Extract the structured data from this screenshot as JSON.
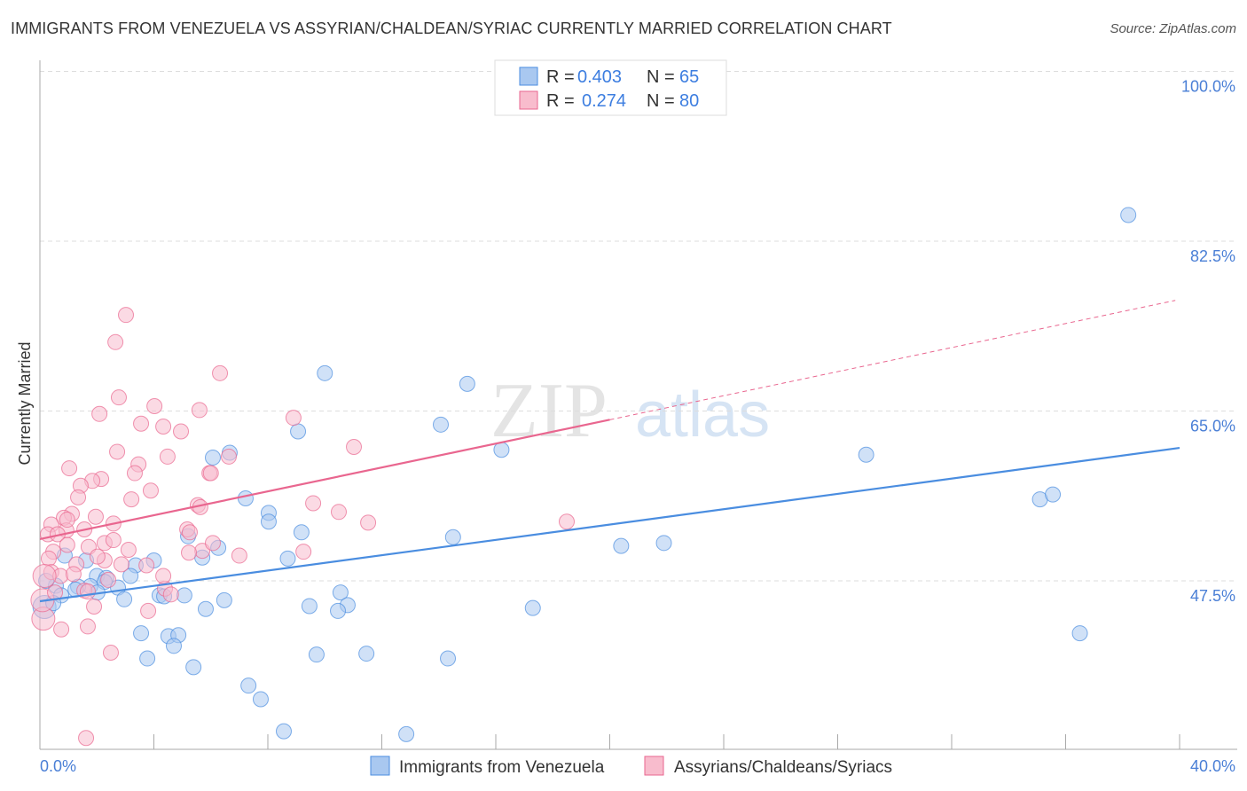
{
  "title": "IMMIGRANTS FROM VENEZUELA VS ASSYRIAN/CHALDEAN/SYRIAC CURRENTLY MARRIED CORRELATION CHART",
  "source": "Source: ZipAtlas.com",
  "watermark": "ZIPatlas",
  "legend": {
    "r_label": "R =",
    "n_label": "N =",
    "rows": [
      {
        "r": "0.403",
        "n": "65"
      },
      {
        "r": "0.274",
        "n": "80"
      }
    ]
  },
  "chart_data": {
    "type": "scatter",
    "title": "IMMIGRANTS FROM VENEZUELA VS ASSYRIAN/CHALDEAN/SYRIAC CURRENTLY MARRIED CORRELATION CHART",
    "xlabel": "",
    "ylabel": "Currently Married",
    "xlim": [
      0,
      40
    ],
    "ylim": [
      30,
      100
    ],
    "x_tick_labels": [
      "0.0%",
      "40.0%"
    ],
    "y_ticks": [
      47.5,
      65.0,
      82.5,
      100.0
    ],
    "y_tick_labels": [
      "47.5%",
      "65.0%",
      "82.5%",
      "100.0%"
    ],
    "grid": true,
    "legend_position": "top-center",
    "series": [
      {
        "name": "Immigrants from Venezuela",
        "color": "#4a8de0",
        "fill": "#a9c8f0",
        "trend": {
          "x": [
            0,
            40
          ],
          "y": [
            45.4,
            61.2
          ]
        },
        "points": [
          [
            38.2,
            85.2
          ],
          [
            10.0,
            68.9
          ],
          [
            15.0,
            67.8
          ],
          [
            9.06,
            62.9
          ],
          [
            14.07,
            63.6
          ],
          [
            6.07,
            60.2
          ],
          [
            6.66,
            60.7
          ],
          [
            16.2,
            61.0
          ],
          [
            29.0,
            60.5
          ],
          [
            35.1,
            55.9
          ],
          [
            35.55,
            56.4
          ],
          [
            7.22,
            56.0
          ],
          [
            8.03,
            54.5
          ],
          [
            8.03,
            53.6
          ],
          [
            5.2,
            52.1
          ],
          [
            6.26,
            50.9
          ],
          [
            9.18,
            52.5
          ],
          [
            14.5,
            52.0
          ],
          [
            20.4,
            51.1
          ],
          [
            21.9,
            51.4
          ],
          [
            5.7,
            49.9
          ],
          [
            8.7,
            49.8
          ],
          [
            4.0,
            49.6
          ],
          [
            3.36,
            49.1
          ],
          [
            1.62,
            49.6
          ],
          [
            0.87,
            50.1
          ],
          [
            2.0,
            48.0
          ],
          [
            2.33,
            47.8
          ],
          [
            3.18,
            48.0
          ],
          [
            2.74,
            46.8
          ],
          [
            2.27,
            47.4
          ],
          [
            1.77,
            46.95
          ],
          [
            1.34,
            46.9
          ],
          [
            0.56,
            47.0
          ],
          [
            0.75,
            46.0
          ],
          [
            0.22,
            47.5
          ],
          [
            0.16,
            44.8
          ],
          [
            2.96,
            45.6
          ],
          [
            4.2,
            46.0
          ],
          [
            4.36,
            45.9
          ],
          [
            5.07,
            46.0
          ],
          [
            6.47,
            45.5
          ],
          [
            5.82,
            44.6
          ],
          [
            10.55,
            46.3
          ],
          [
            10.8,
            45.0
          ],
          [
            10.46,
            44.4
          ],
          [
            9.46,
            44.9
          ],
          [
            17.3,
            44.7
          ],
          [
            3.55,
            42.1
          ],
          [
            4.51,
            41.8
          ],
          [
            4.86,
            41.9
          ],
          [
            4.7,
            40.8
          ],
          [
            3.77,
            39.5
          ],
          [
            5.39,
            38.6
          ],
          [
            9.71,
            39.9
          ],
          [
            11.46,
            40.0
          ],
          [
            14.32,
            39.5
          ],
          [
            36.5,
            42.1
          ],
          [
            7.32,
            36.7
          ],
          [
            7.75,
            35.3
          ],
          [
            8.56,
            32.0
          ],
          [
            12.86,
            31.7
          ],
          [
            1.25,
            46.6
          ],
          [
            2.02,
            46.3
          ],
          [
            0.47,
            45.2
          ]
        ]
      },
      {
        "name": "Assyrians/Chaldeans/Syriacs",
        "color": "#e9668f",
        "fill": "#f8bccd",
        "trend": {
          "x": [
            0,
            20
          ],
          "y": [
            51.8,
            64.1
          ],
          "dashed_to": [
            39.85,
            76.4
          ]
        },
        "points": [
          [
            3.02,
            74.9
          ],
          [
            2.65,
            72.1
          ],
          [
            6.32,
            68.9
          ],
          [
            2.77,
            66.4
          ],
          [
            4.02,
            65.5
          ],
          [
            2.09,
            64.7
          ],
          [
            5.6,
            65.1
          ],
          [
            3.55,
            63.7
          ],
          [
            4.33,
            63.4
          ],
          [
            4.95,
            62.9
          ],
          [
            8.9,
            64.3
          ],
          [
            11.02,
            61.3
          ],
          [
            2.71,
            60.8
          ],
          [
            4.48,
            60.3
          ],
          [
            6.63,
            60.3
          ],
          [
            3.46,
            59.5
          ],
          [
            1.03,
            59.1
          ],
          [
            3.33,
            58.6
          ],
          [
            5.95,
            58.6
          ],
          [
            6.0,
            58.6
          ],
          [
            2.15,
            58.0
          ],
          [
            1.84,
            57.8
          ],
          [
            1.43,
            57.3
          ],
          [
            3.89,
            56.8
          ],
          [
            3.21,
            55.9
          ],
          [
            1.34,
            56.1
          ],
          [
            5.54,
            55.3
          ],
          [
            5.63,
            55.1
          ],
          [
            9.59,
            55.5
          ],
          [
            10.49,
            54.6
          ],
          [
            11.52,
            53.5
          ],
          [
            18.49,
            53.6
          ],
          [
            1.96,
            54.1
          ],
          [
            1.12,
            54.4
          ],
          [
            0.84,
            54.0
          ],
          [
            2.58,
            53.4
          ],
          [
            0.4,
            53.3
          ],
          [
            1.56,
            52.8
          ],
          [
            0.28,
            52.3
          ],
          [
            0.93,
            52.7
          ],
          [
            0.62,
            52.3
          ],
          [
            2.27,
            51.4
          ],
          [
            2.58,
            51.7
          ],
          [
            1.71,
            51.0
          ],
          [
            0.96,
            51.2
          ],
          [
            3.11,
            50.7
          ],
          [
            5.17,
            52.8
          ],
          [
            5.26,
            52.5
          ],
          [
            5.7,
            50.6
          ],
          [
            5.23,
            50.4
          ],
          [
            7.0,
            50.1
          ],
          [
            9.25,
            50.5
          ],
          [
            0.47,
            50.5
          ],
          [
            0.31,
            49.8
          ],
          [
            2.27,
            49.6
          ],
          [
            2.86,
            49.2
          ],
          [
            1.28,
            49.2
          ],
          [
            0.4,
            48.4
          ],
          [
            0.72,
            48.0
          ],
          [
            1.18,
            48.2
          ],
          [
            1.56,
            46.5
          ],
          [
            1.68,
            46.4
          ],
          [
            4.39,
            46.7
          ],
          [
            4.6,
            46.1
          ],
          [
            4.33,
            48.0
          ],
          [
            2.4,
            47.6
          ],
          [
            0.16,
            48.0
          ],
          [
            1.9,
            44.85
          ],
          [
            3.8,
            44.4
          ],
          [
            0.12,
            43.6
          ],
          [
            0.75,
            42.5
          ],
          [
            1.68,
            42.8
          ],
          [
            2.49,
            40.1
          ],
          [
            1.62,
            31.3
          ],
          [
            0.09,
            45.5
          ],
          [
            0.53,
            46.3
          ],
          [
            2.02,
            50.0
          ],
          [
            3.74,
            49.1
          ],
          [
            6.07,
            51.4
          ],
          [
            0.96,
            53.8
          ]
        ]
      }
    ]
  }
}
